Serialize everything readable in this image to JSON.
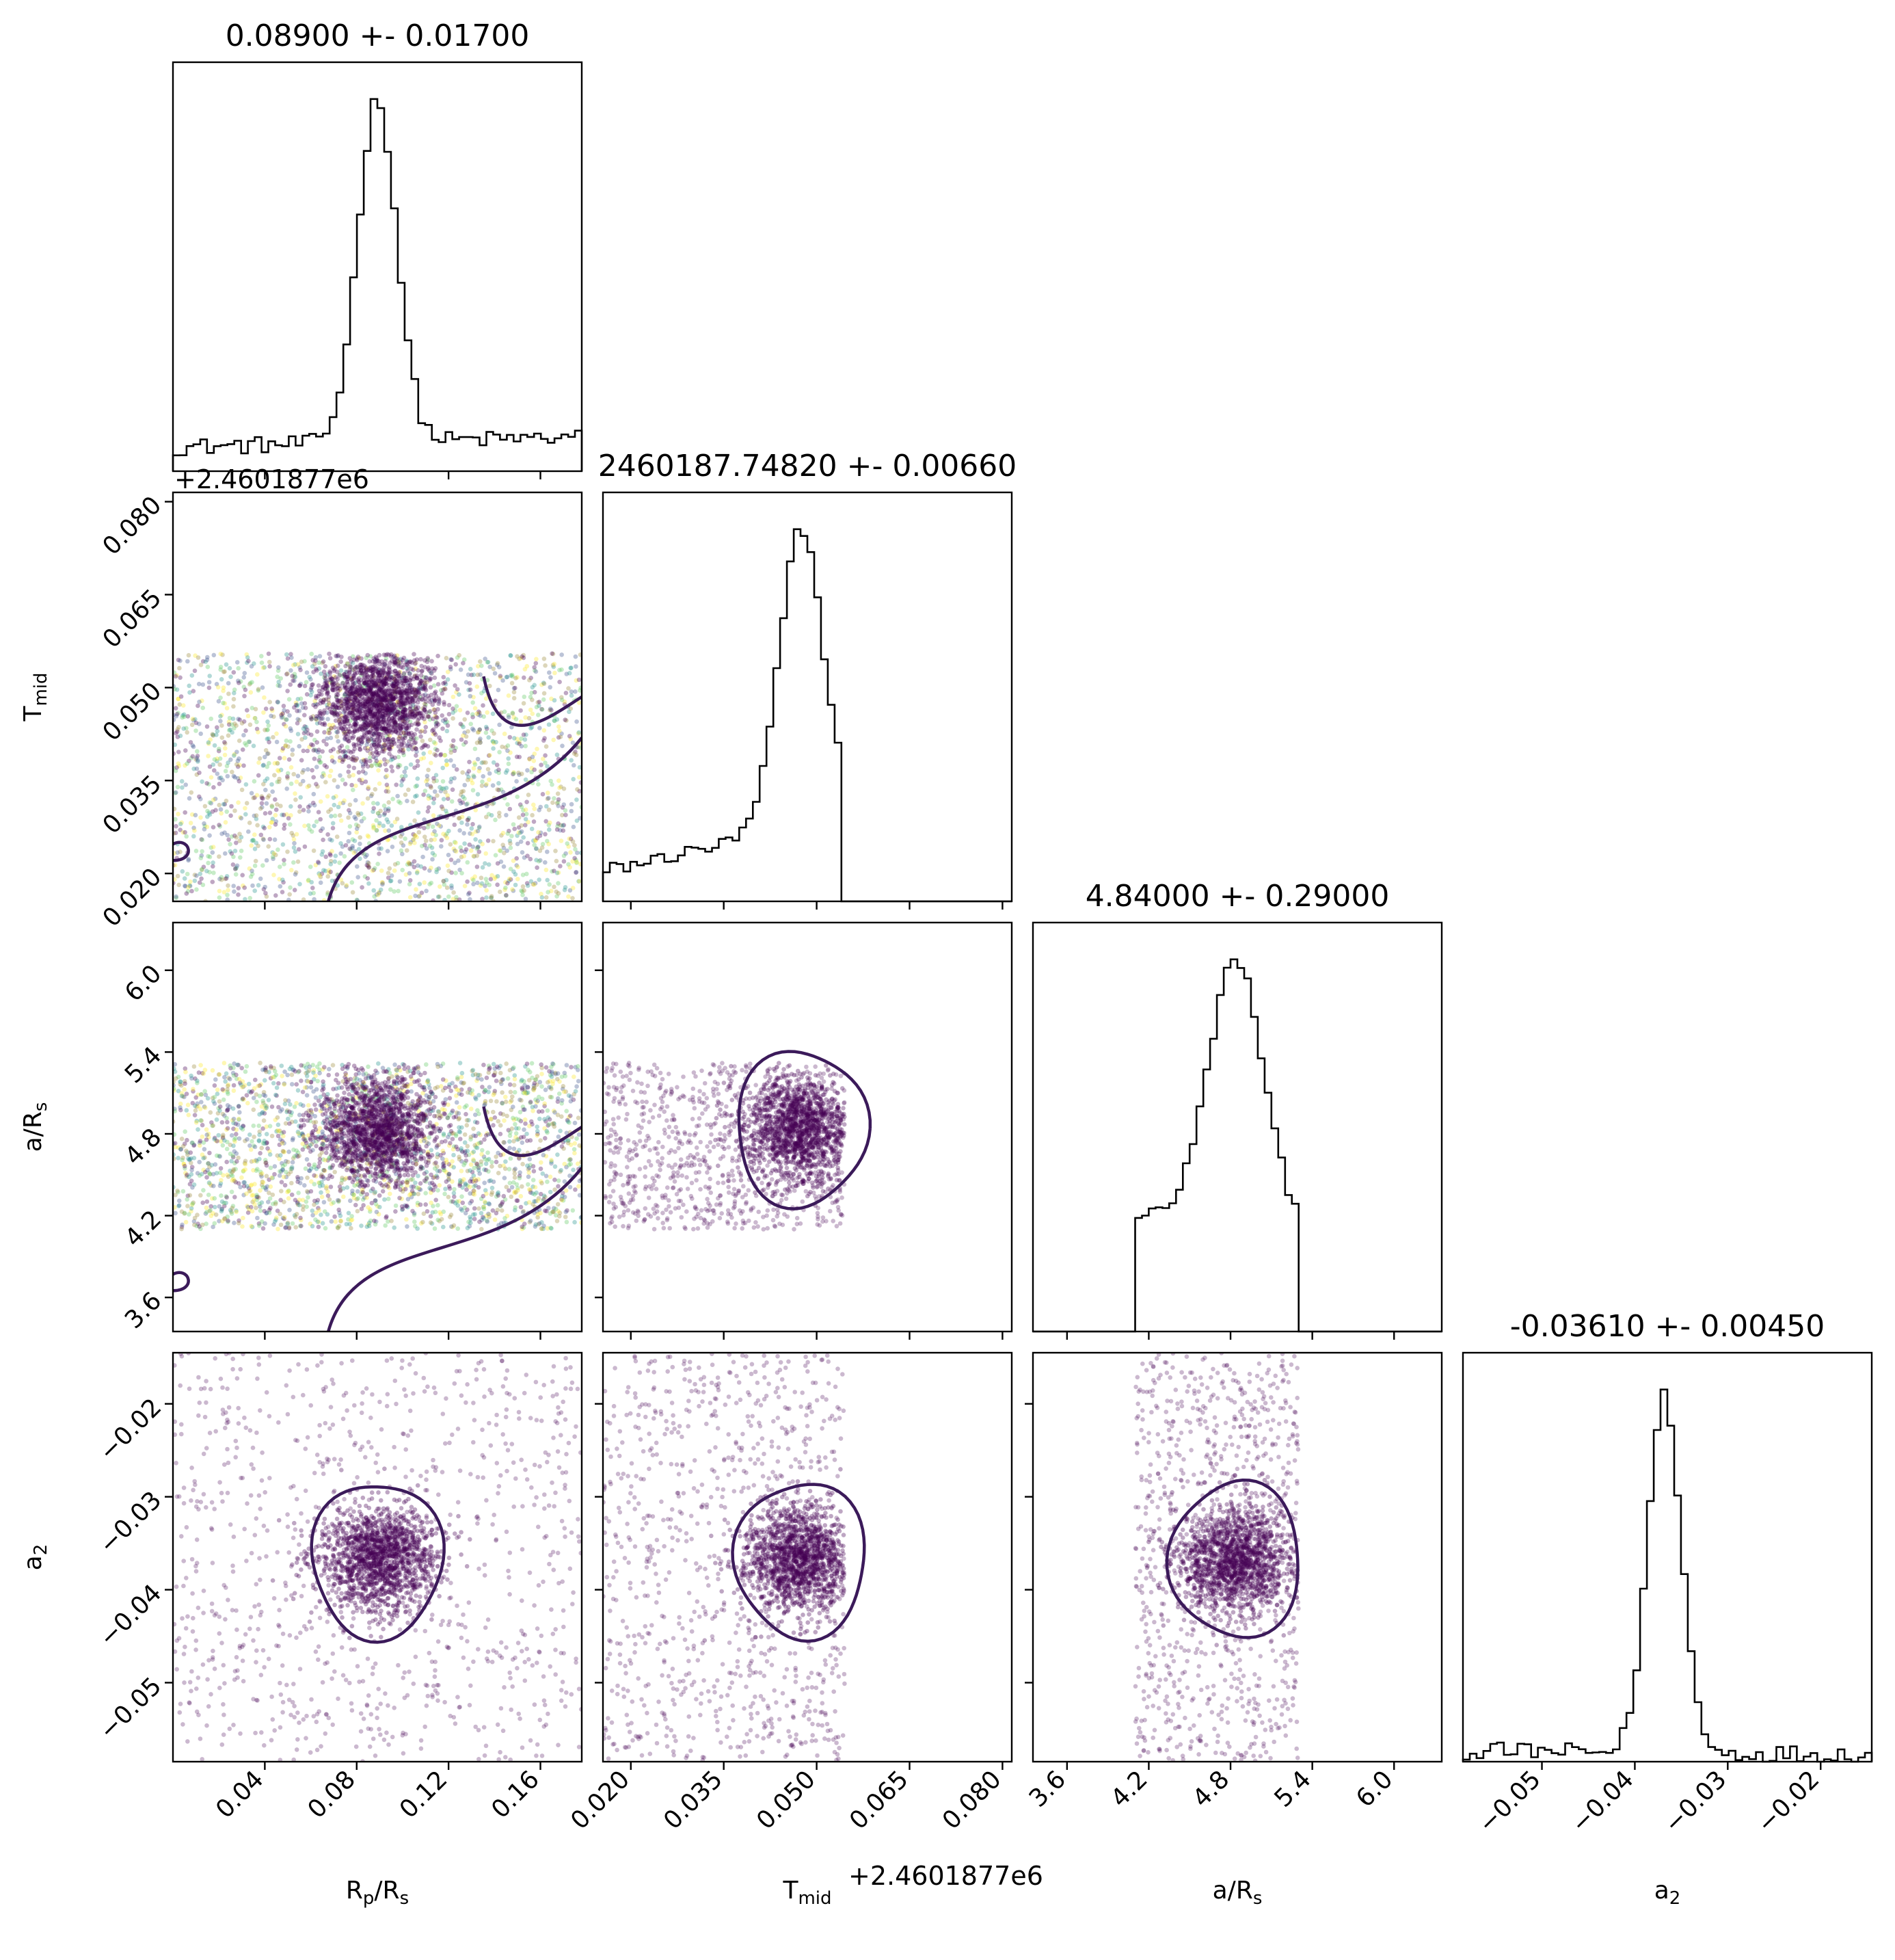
{
  "chart_data": {
    "type": "corner",
    "parameters": [
      {
        "key": "rp",
        "label_main": "R",
        "label_sub": "p",
        "label_tail": "/R",
        "label_sub2": "s",
        "range": [
          0.0,
          0.178
        ],
        "ticks": [
          "0.04",
          "0.08",
          "0.12",
          "0.16"
        ],
        "tick_values": [
          0.04,
          0.08,
          0.12,
          0.16
        ],
        "title": "0.08900 +- 0.01700"
      },
      {
        "key": "tmid",
        "label_main": "T",
        "label_sub": "mid",
        "label_tail": "",
        "label_sub2": "",
        "range": [
          0.0155,
          0.0815
        ],
        "ticks": [
          "0.020",
          "0.035",
          "0.050",
          "0.065",
          "0.080"
        ],
        "tick_values": [
          0.02,
          0.035,
          0.05,
          0.065,
          0.08
        ],
        "title": "2460187.74820 +- 0.00660",
        "offset": "+2.4601877e6"
      },
      {
        "key": "ars",
        "label_main": "a/R",
        "label_sub": "s",
        "label_tail": "",
        "label_sub2": "",
        "range": [
          3.35,
          6.35
        ],
        "ticks": [
          "3.6",
          "4.2",
          "4.8",
          "5.4",
          "6.0"
        ],
        "tick_values": [
          3.6,
          4.2,
          4.8,
          5.4,
          6.0
        ],
        "title": "4.84000 +- 0.29000"
      },
      {
        "key": "a2",
        "label_main": "a",
        "label_sub": "2",
        "label_tail": "",
        "label_sub2": "",
        "range": [
          -0.0585,
          -0.0145
        ],
        "ticks": [
          "−0.05",
          "−0.04",
          "−0.03",
          "−0.02"
        ],
        "tick_values": [
          -0.05,
          -0.04,
          -0.03,
          -0.02
        ],
        "title": "-0.03610 +- 0.00450"
      }
    ],
    "histograms": [
      {
        "param": "rp",
        "bin_edges_range": [
          0.0,
          0.178
        ],
        "bins": 60,
        "profile": {
          "background": [
            0.07,
            0.1
          ],
          "peak_center": 0.089,
          "peak_sigma": 0.0085,
          "peak_height": 1.0
        }
      },
      {
        "param": "tmid",
        "bin_edges_range": [
          0.0155,
          0.0815
        ],
        "bins": 60,
        "profile": {
          "support": [
            0.0155,
            0.0545
          ],
          "background": [
            0.1,
            0.28
          ],
          "peak_center": 0.0475,
          "peak_sigma": 0.0035,
          "peak_height": 1.0
        }
      },
      {
        "param": "ars",
        "bin_edges_range": [
          3.35,
          6.35
        ],
        "bins": 60,
        "profile": {
          "support": [
            4.1,
            5.3
          ],
          "background": [
            0.45,
            0.38
          ],
          "peak_center": 4.84,
          "peak_sigma": 0.2,
          "peak_height": 1.0
        }
      },
      {
        "param": "a2",
        "bin_edges_range": [
          -0.0585,
          -0.0145
        ],
        "bins": 60,
        "profile": {
          "background": [
            0.03,
            0.02
          ],
          "peak_center": -0.0368,
          "peak_sigma": 0.0018,
          "peak_height": 1.0
        }
      }
    ],
    "scatter_2d": [
      {
        "x": "rp",
        "y": "tmid",
        "x_support": [
          0.0,
          0.178
        ],
        "y_support": [
          0.0155,
          0.0555
        ],
        "center": [
          0.089,
          0.0475
        ],
        "multicolor": true
      },
      {
        "x": "rp",
        "y": "ars",
        "x_support": [
          0.0,
          0.178
        ],
        "y_support": [
          4.1,
          5.32
        ],
        "center": [
          0.089,
          4.84
        ],
        "multicolor": true
      },
      {
        "x": "tmid",
        "y": "ars",
        "x_support": [
          0.0155,
          0.0545
        ],
        "y_support": [
          4.1,
          5.32
        ],
        "center": [
          0.0475,
          4.84
        ],
        "multicolor": false
      },
      {
        "x": "rp",
        "y": "a2",
        "x_support": [
          0.0,
          0.178
        ],
        "y_support": [
          -0.0585,
          -0.0145
        ],
        "center": [
          0.089,
          -0.0368
        ],
        "multicolor": false
      },
      {
        "x": "tmid",
        "y": "a2",
        "x_support": [
          0.0155,
          0.0545
        ],
        "y_support": [
          -0.0585,
          -0.0145
        ],
        "center": [
          0.0475,
          -0.0368
        ],
        "multicolor": false
      },
      {
        "x": "ars",
        "y": "a2",
        "x_support": [
          4.1,
          5.3
        ],
        "y_support": [
          -0.0585,
          -0.0145
        ],
        "center": [
          4.84,
          -0.0368
        ],
        "multicolor": false
      }
    ],
    "point_color": "#440154",
    "contour_color": "#3b1a5a",
    "multicolor_palette": [
      "#440154",
      "#3b528b",
      "#21918c",
      "#5ec962",
      "#fde725",
      "#9a8a3a"
    ],
    "grid": false
  }
}
